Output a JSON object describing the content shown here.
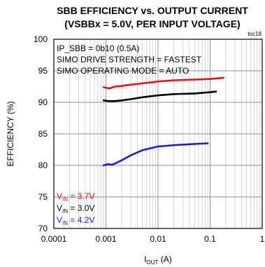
{
  "chart_data": {
    "type": "line",
    "title": "SBB EFFICIENCY vs. OUTPUT CURRENT",
    "subtitle": "(VSBBx = 5.0V, PER INPUT VOLTAGE)",
    "figure_id": "toc18",
    "xlabel": {
      "main": "I",
      "sub": "OUT",
      "unit": " (A)"
    },
    "ylabel": "EFFICIENCY (%)",
    "x_scale": "log",
    "xlim": [
      0.0001,
      1
    ],
    "ylim": [
      70,
      100
    ],
    "x_ticks": [
      0.0001,
      0.001,
      0.01,
      0.1,
      1
    ],
    "x_tick_labels": [
      "0.0001",
      "0.001",
      "0.01",
      "0.1",
      "1"
    ],
    "y_ticks": [
      70,
      75,
      80,
      85,
      90,
      95,
      100
    ],
    "y_tick_labels": [
      "70",
      "75",
      "80",
      "85",
      "90",
      "95",
      "100"
    ],
    "grid": true,
    "annotations": [
      "IP_SBB = 0b10 (0.5A)",
      "SIMO DRIVE STRENGTH = FASTEST",
      "SIMO OPERATING MODE = AUTO"
    ],
    "legend_position": "bottom-left",
    "series": [
      {
        "name_main": "V",
        "name_sub": "IN",
        "name_value": " = 3.7V",
        "color": "#e8101e",
        "x": [
          0.0009,
          0.00115,
          0.0015,
          0.002,
          0.003,
          0.005,
          0.01,
          0.02,
          0.05,
          0.1,
          0.18
        ],
        "y": [
          92.4,
          92.2,
          92.5,
          92.6,
          92.8,
          93.0,
          93.3,
          93.5,
          93.6,
          93.7,
          93.9
        ]
      },
      {
        "name_main": "V",
        "name_sub": "IN",
        "name_value": " = 3.0V",
        "color": "#000000",
        "x": [
          0.0009,
          0.0011,
          0.0015,
          0.002,
          0.003,
          0.005,
          0.01,
          0.02,
          0.05,
          0.1,
          0.13
        ],
        "y": [
          90.3,
          90.2,
          90.2,
          90.3,
          90.5,
          90.8,
          91.1,
          91.3,
          91.4,
          91.6,
          91.7
        ]
      },
      {
        "name_main": "V",
        "name_sub": "IN",
        "name_value": " = 4.2V",
        "color": "#1a1fd6",
        "x": [
          0.0009,
          0.0011,
          0.0013,
          0.0015,
          0.002,
          0.003,
          0.005,
          0.007,
          0.01,
          0.02,
          0.05,
          0.09
        ],
        "y": [
          80.0,
          80.2,
          80.1,
          80.3,
          80.8,
          81.6,
          82.4,
          82.7,
          83.0,
          83.2,
          83.4,
          83.5
        ]
      }
    ]
  }
}
